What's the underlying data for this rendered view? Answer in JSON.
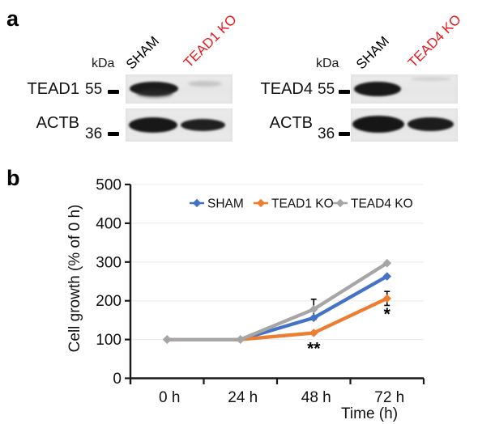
{
  "figure": {
    "panel_a_label": "a",
    "panel_b_label": "b"
  },
  "panel_a": {
    "left_blot": {
      "kda_label": "kDa",
      "lanes": [
        {
          "label": "SHAM",
          "color": "#000000"
        },
        {
          "label": "TEAD1 KO",
          "color": "#e8191d"
        }
      ],
      "rows": [
        {
          "protein": "TEAD1",
          "marker": "55"
        },
        {
          "protein": "ACTB",
          "marker": "36"
        }
      ]
    },
    "right_blot": {
      "kda_label": "kDa",
      "lanes": [
        {
          "label": "SHAM",
          "color": "#000000"
        },
        {
          "label": "TEAD4 KO",
          "color": "#e8191d"
        }
      ],
      "rows": [
        {
          "protein": "TEAD4",
          "marker": "55"
        },
        {
          "protein": "ACTB",
          "marker": "36"
        }
      ]
    }
  },
  "chart_data": {
    "type": "line",
    "categories": [
      "0 h",
      "24 h",
      "48 h",
      "72 h"
    ],
    "series": [
      {
        "name": "SHAM",
        "color": "#4472c4",
        "values": [
          100,
          100,
          156,
          263
        ]
      },
      {
        "name": "TEAD1 KO",
        "color": "#ed7d31",
        "values": [
          100,
          100,
          117,
          206
        ]
      },
      {
        "name": "TEAD4 KO",
        "color": "#a6a6a6",
        "values": [
          100,
          100,
          178,
          297
        ]
      }
    ],
    "title": "",
    "xlabel": "Time (h)",
    "ylabel": "Cell growth (% of 0 h)",
    "ylim": [
      0,
      500
    ],
    "ytick_step": 100,
    "grid": "horizontal-faint",
    "gridline_color": "#ececef",
    "legend_position": "top",
    "error_bars": [
      {
        "series": "TEAD4 KO",
        "category": "48 h",
        "value": 26
      },
      {
        "series": "TEAD1 KO",
        "category": "72 h",
        "value": 18
      }
    ],
    "annotations": [
      {
        "text": "**",
        "series": "TEAD1 KO",
        "category": "48 h",
        "position": "below"
      },
      {
        "text": "*",
        "series": "TEAD1 KO",
        "category": "72 h",
        "position": "below"
      }
    ]
  }
}
